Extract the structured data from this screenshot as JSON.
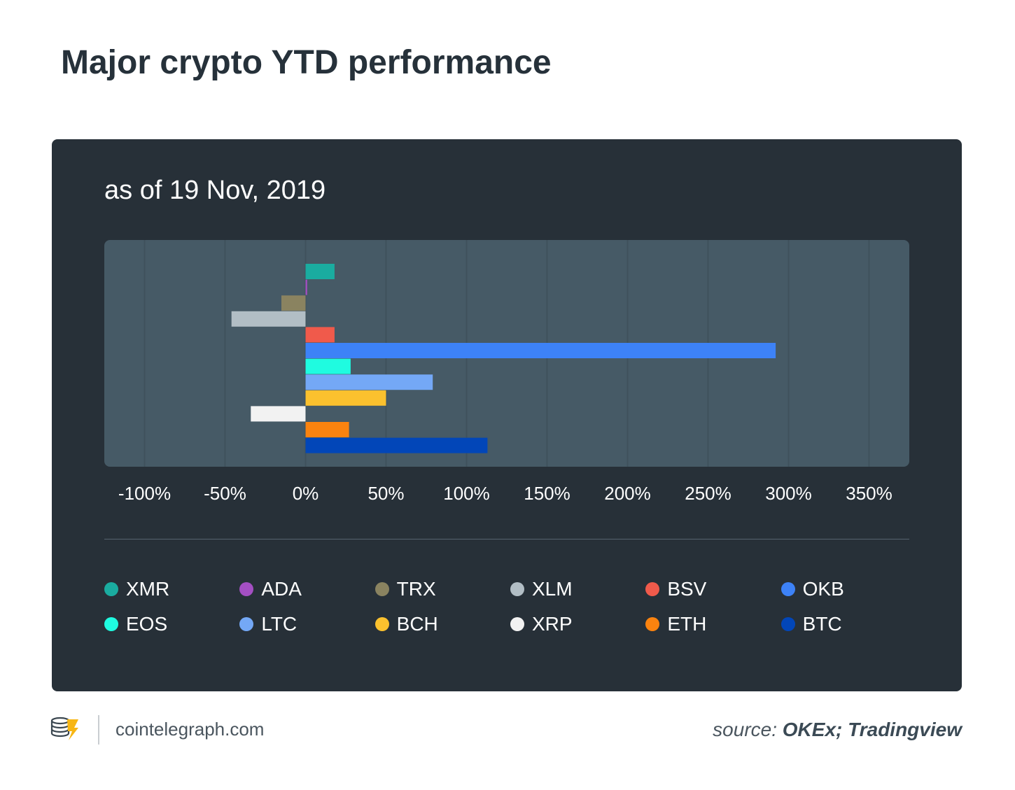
{
  "title": "Major crypto YTD performance",
  "subtitle": "as of 19 Nov, 2019",
  "chart_data": {
    "type": "bar",
    "orientation": "horizontal",
    "title": "Major crypto YTD performance",
    "subtitle": "as of 19 Nov, 2019",
    "xlim": [
      -125,
      375
    ],
    "x_ticks": [
      -100,
      -50,
      0,
      50,
      100,
      150,
      200,
      250,
      300,
      350
    ],
    "x_tick_labels": [
      "-100%",
      "-50%",
      "0%",
      "50%",
      "100%",
      "150%",
      "200%",
      "250%",
      "300%",
      "350%"
    ],
    "unit": "%",
    "grid": true,
    "legend_position": "bottom",
    "categories": [
      "XMR",
      "ADA",
      "TRX",
      "XLM",
      "BSV",
      "OKB",
      "EOS",
      "LTC",
      "BCH",
      "XRP",
      "ETH",
      "BTC"
    ],
    "values": [
      18,
      1,
      -15,
      -46,
      18,
      292,
      28,
      79,
      50,
      -34,
      27,
      113
    ],
    "colors": [
      "#1aaca0",
      "#a44fc3",
      "#8a8360",
      "#b2bec5",
      "#f05a4b",
      "#3d82f7",
      "#1ffbe0",
      "#74a8f6",
      "#fbc12e",
      "#f2f2f2",
      "#fb830f",
      "#0246b8"
    ]
  },
  "footer": {
    "site": "cointelegraph.com",
    "source_label": "source:",
    "source_value": "OKEx; Tradingview"
  }
}
